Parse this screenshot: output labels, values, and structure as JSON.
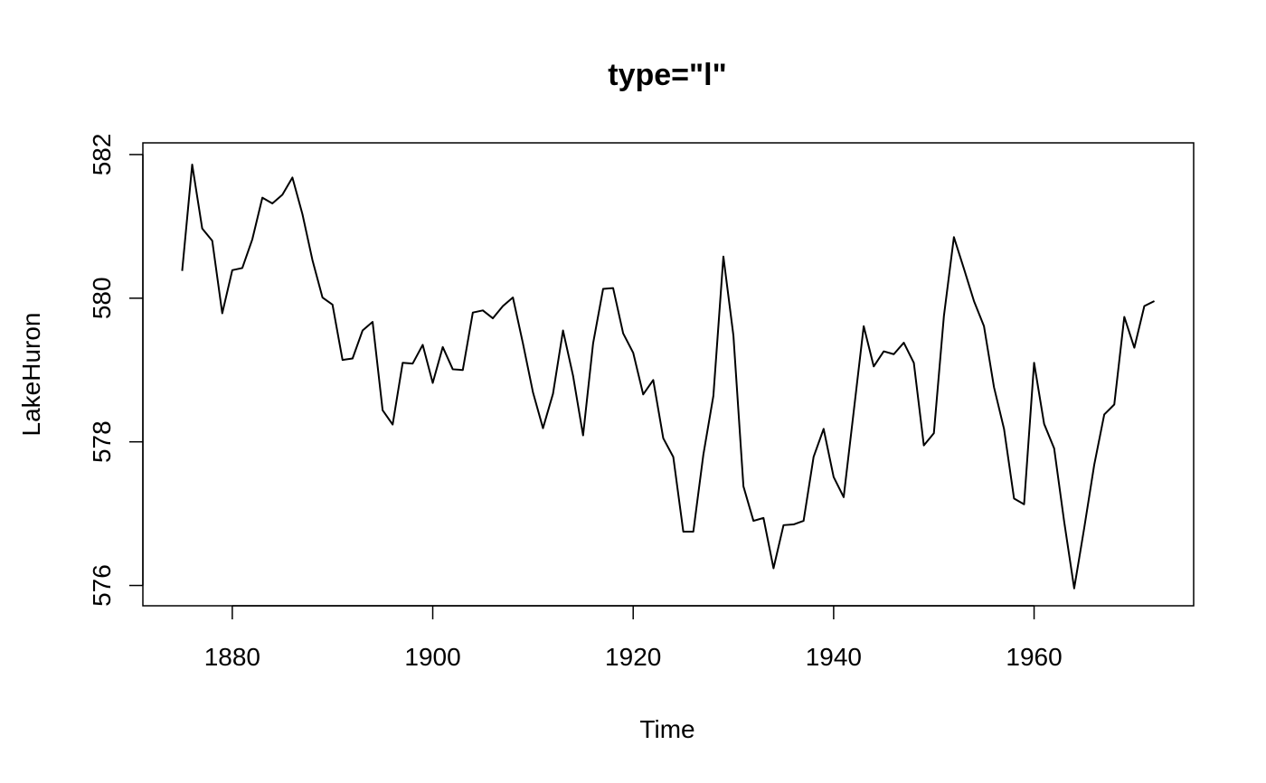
{
  "chart_data": {
    "type": "line",
    "title": "type=\"l\"",
    "xlabel": "Time",
    "ylabel": "LakeHuron",
    "xlim": [
      1871.08,
      1975.92
    ],
    "ylim": [
      575.7172,
      582.1628
    ],
    "xticks": [
      1880,
      1900,
      1920,
      1940,
      1960
    ],
    "yticks": [
      576,
      578,
      580,
      582
    ],
    "xtick_labels": [
      "1880",
      "1900",
      "1920",
      "1940",
      "1960"
    ],
    "ytick_labels": [
      "576",
      "578",
      "580",
      "582"
    ],
    "grid": false,
    "line_color": "#000000",
    "series": [
      {
        "x": [
          1875,
          1876,
          1877,
          1878,
          1879,
          1880,
          1881,
          1882,
          1883,
          1884,
          1885,
          1886,
          1887,
          1888,
          1889,
          1890,
          1891,
          1892,
          1893,
          1894,
          1895,
          1896,
          1897,
          1898,
          1899,
          1900,
          1901,
          1902,
          1903,
          1904,
          1905,
          1906,
          1907,
          1908,
          1909,
          1910,
          1911,
          1912,
          1913,
          1914,
          1915,
          1916,
          1917,
          1918,
          1919,
          1920,
          1921,
          1922,
          1923,
          1924,
          1925,
          1926,
          1927,
          1928,
          1929,
          1930,
          1931,
          1932,
          1933,
          1934,
          1935,
          1936,
          1937,
          1938,
          1939,
          1940,
          1941,
          1942,
          1943,
          1944,
          1945,
          1946,
          1947,
          1948,
          1949,
          1950,
          1951,
          1952,
          1953,
          1954,
          1955,
          1956,
          1957,
          1958,
          1959,
          1960,
          1961,
          1962,
          1963,
          1964,
          1965,
          1966,
          1967,
          1968,
          1969,
          1970,
          1971,
          1972
        ],
        "values": [
          580.38,
          581.86,
          580.97,
          580.8,
          579.79,
          580.39,
          580.42,
          580.82,
          581.4,
          581.32,
          581.44,
          581.68,
          581.17,
          580.53,
          580.01,
          579.91,
          579.14,
          579.16,
          579.55,
          579.67,
          578.44,
          578.24,
          579.1,
          579.09,
          579.35,
          578.82,
          579.32,
          579.01,
          579.0,
          579.8,
          579.83,
          579.72,
          579.89,
          580.01,
          579.37,
          578.69,
          578.19,
          578.67,
          579.55,
          578.92,
          578.09,
          579.37,
          580.13,
          580.14,
          579.51,
          579.24,
          578.66,
          578.86,
          578.05,
          577.79,
          576.75,
          576.75,
          577.82,
          578.64,
          580.58,
          579.48,
          577.38,
          576.9,
          576.94,
          576.24,
          576.84,
          576.85,
          576.9,
          577.79,
          578.18,
          577.51,
          577.23,
          578.42,
          579.61,
          579.05,
          579.26,
          579.22,
          579.38,
          579.1,
          577.95,
          578.12,
          579.75,
          580.85,
          580.41,
          579.96,
          579.61,
          578.76,
          578.18,
          577.21,
          577.13,
          579.1,
          578.25,
          577.91,
          576.89,
          575.96,
          576.8,
          577.68,
          578.38,
          578.52,
          579.74,
          579.31,
          579.89,
          579.96
        ]
      }
    ]
  }
}
